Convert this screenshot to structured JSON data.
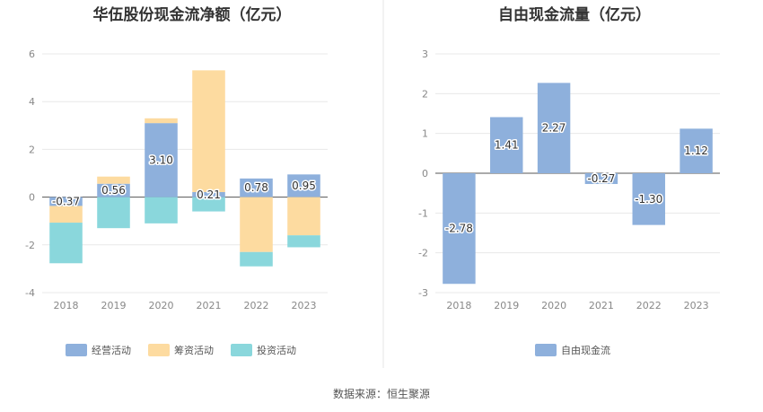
{
  "source_note": "数据来源：恒生聚源",
  "chart_data": [
    {
      "type": "bar",
      "stacked": true,
      "title": "华伍股份现金流净额（亿元）",
      "categories": [
        "2018",
        "2019",
        "2020",
        "2021",
        "2022",
        "2023"
      ],
      "ylim": [
        -4,
        6
      ],
      "yticks": [
        "-4",
        "-2",
        "0",
        "2",
        "4",
        "6"
      ],
      "grid": true,
      "legend_position": "bottom",
      "series": [
        {
          "name": "经营活动",
          "color": "#8eb0dc",
          "values": [
            -0.37,
            0.56,
            3.1,
            0.21,
            0.78,
            0.95
          ],
          "labels": [
            "-0.37",
            "0.56",
            "3.10",
            "0.21",
            "0.78",
            "0.95"
          ]
        },
        {
          "name": "筹资活动",
          "color": "#fddba0",
          "values": [
            -0.7,
            0.3,
            0.2,
            5.1,
            -2.3,
            -1.6
          ]
        },
        {
          "name": "投资活动",
          "color": "#8ad7dc",
          "values": [
            -1.7,
            -1.3,
            -1.1,
            -0.6,
            -0.6,
            -0.5
          ]
        }
      ]
    },
    {
      "type": "bar",
      "title": "自由现金流量（亿元）",
      "categories": [
        "2018",
        "2019",
        "2020",
        "2021",
        "2022",
        "2023"
      ],
      "ylim": [
        -3,
        3
      ],
      "yticks": [
        "-3",
        "-2",
        "-1",
        "0",
        "1",
        "2",
        "3"
      ],
      "grid": true,
      "legend_position": "bottom",
      "series": [
        {
          "name": "自由现金流",
          "color": "#8eb0dc",
          "values": [
            -2.78,
            1.41,
            2.27,
            -0.27,
            -1.3,
            1.12
          ],
          "labels": [
            "-2.78",
            "1.41",
            "2.27",
            "-0.27",
            "-1.30",
            "1.12"
          ]
        }
      ]
    }
  ]
}
